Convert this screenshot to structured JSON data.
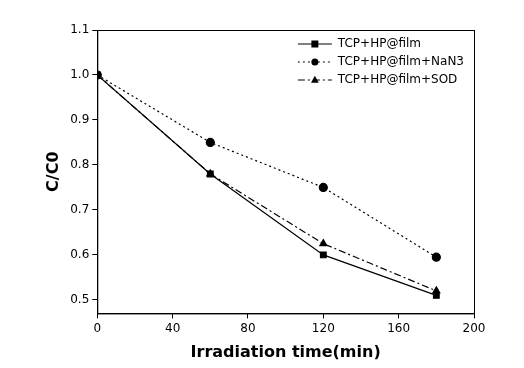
{
  "chart_data": {
    "type": "line",
    "x_label": "Irradiation time(min)",
    "y_label": "C/C0",
    "x": [
      0,
      60,
      120,
      180
    ],
    "series": [
      {
        "name": "TCP+HP@film",
        "color": "#000000",
        "marker": "square",
        "line_style": "solid",
        "values": [
          1.0,
          0.78,
          0.6,
          0.51
        ]
      },
      {
        "name": "TCP+HP@film+NaN3",
        "color": "#000000",
        "marker": "circle",
        "line_style": "dotted",
        "values": [
          1.0,
          0.85,
          0.75,
          0.595
        ]
      },
      {
        "name": "TCP+HP@film+SOD",
        "color": "#000000",
        "marker": "triangle",
        "line_style": "dashdot",
        "values": [
          1.0,
          0.78,
          0.625,
          0.52
        ]
      }
    ],
    "xlim": [
      0,
      200
    ],
    "xticks": [
      0,
      40,
      80,
      120,
      160,
      200
    ],
    "ylim": [
      0.47,
      1.1
    ],
    "yticks": [
      0.5,
      0.6,
      0.7,
      0.8,
      0.9,
      {
        "value": 1.0,
        "label": "1.0"
      },
      1.1
    ],
    "grid": false,
    "legend": "upper right"
  }
}
